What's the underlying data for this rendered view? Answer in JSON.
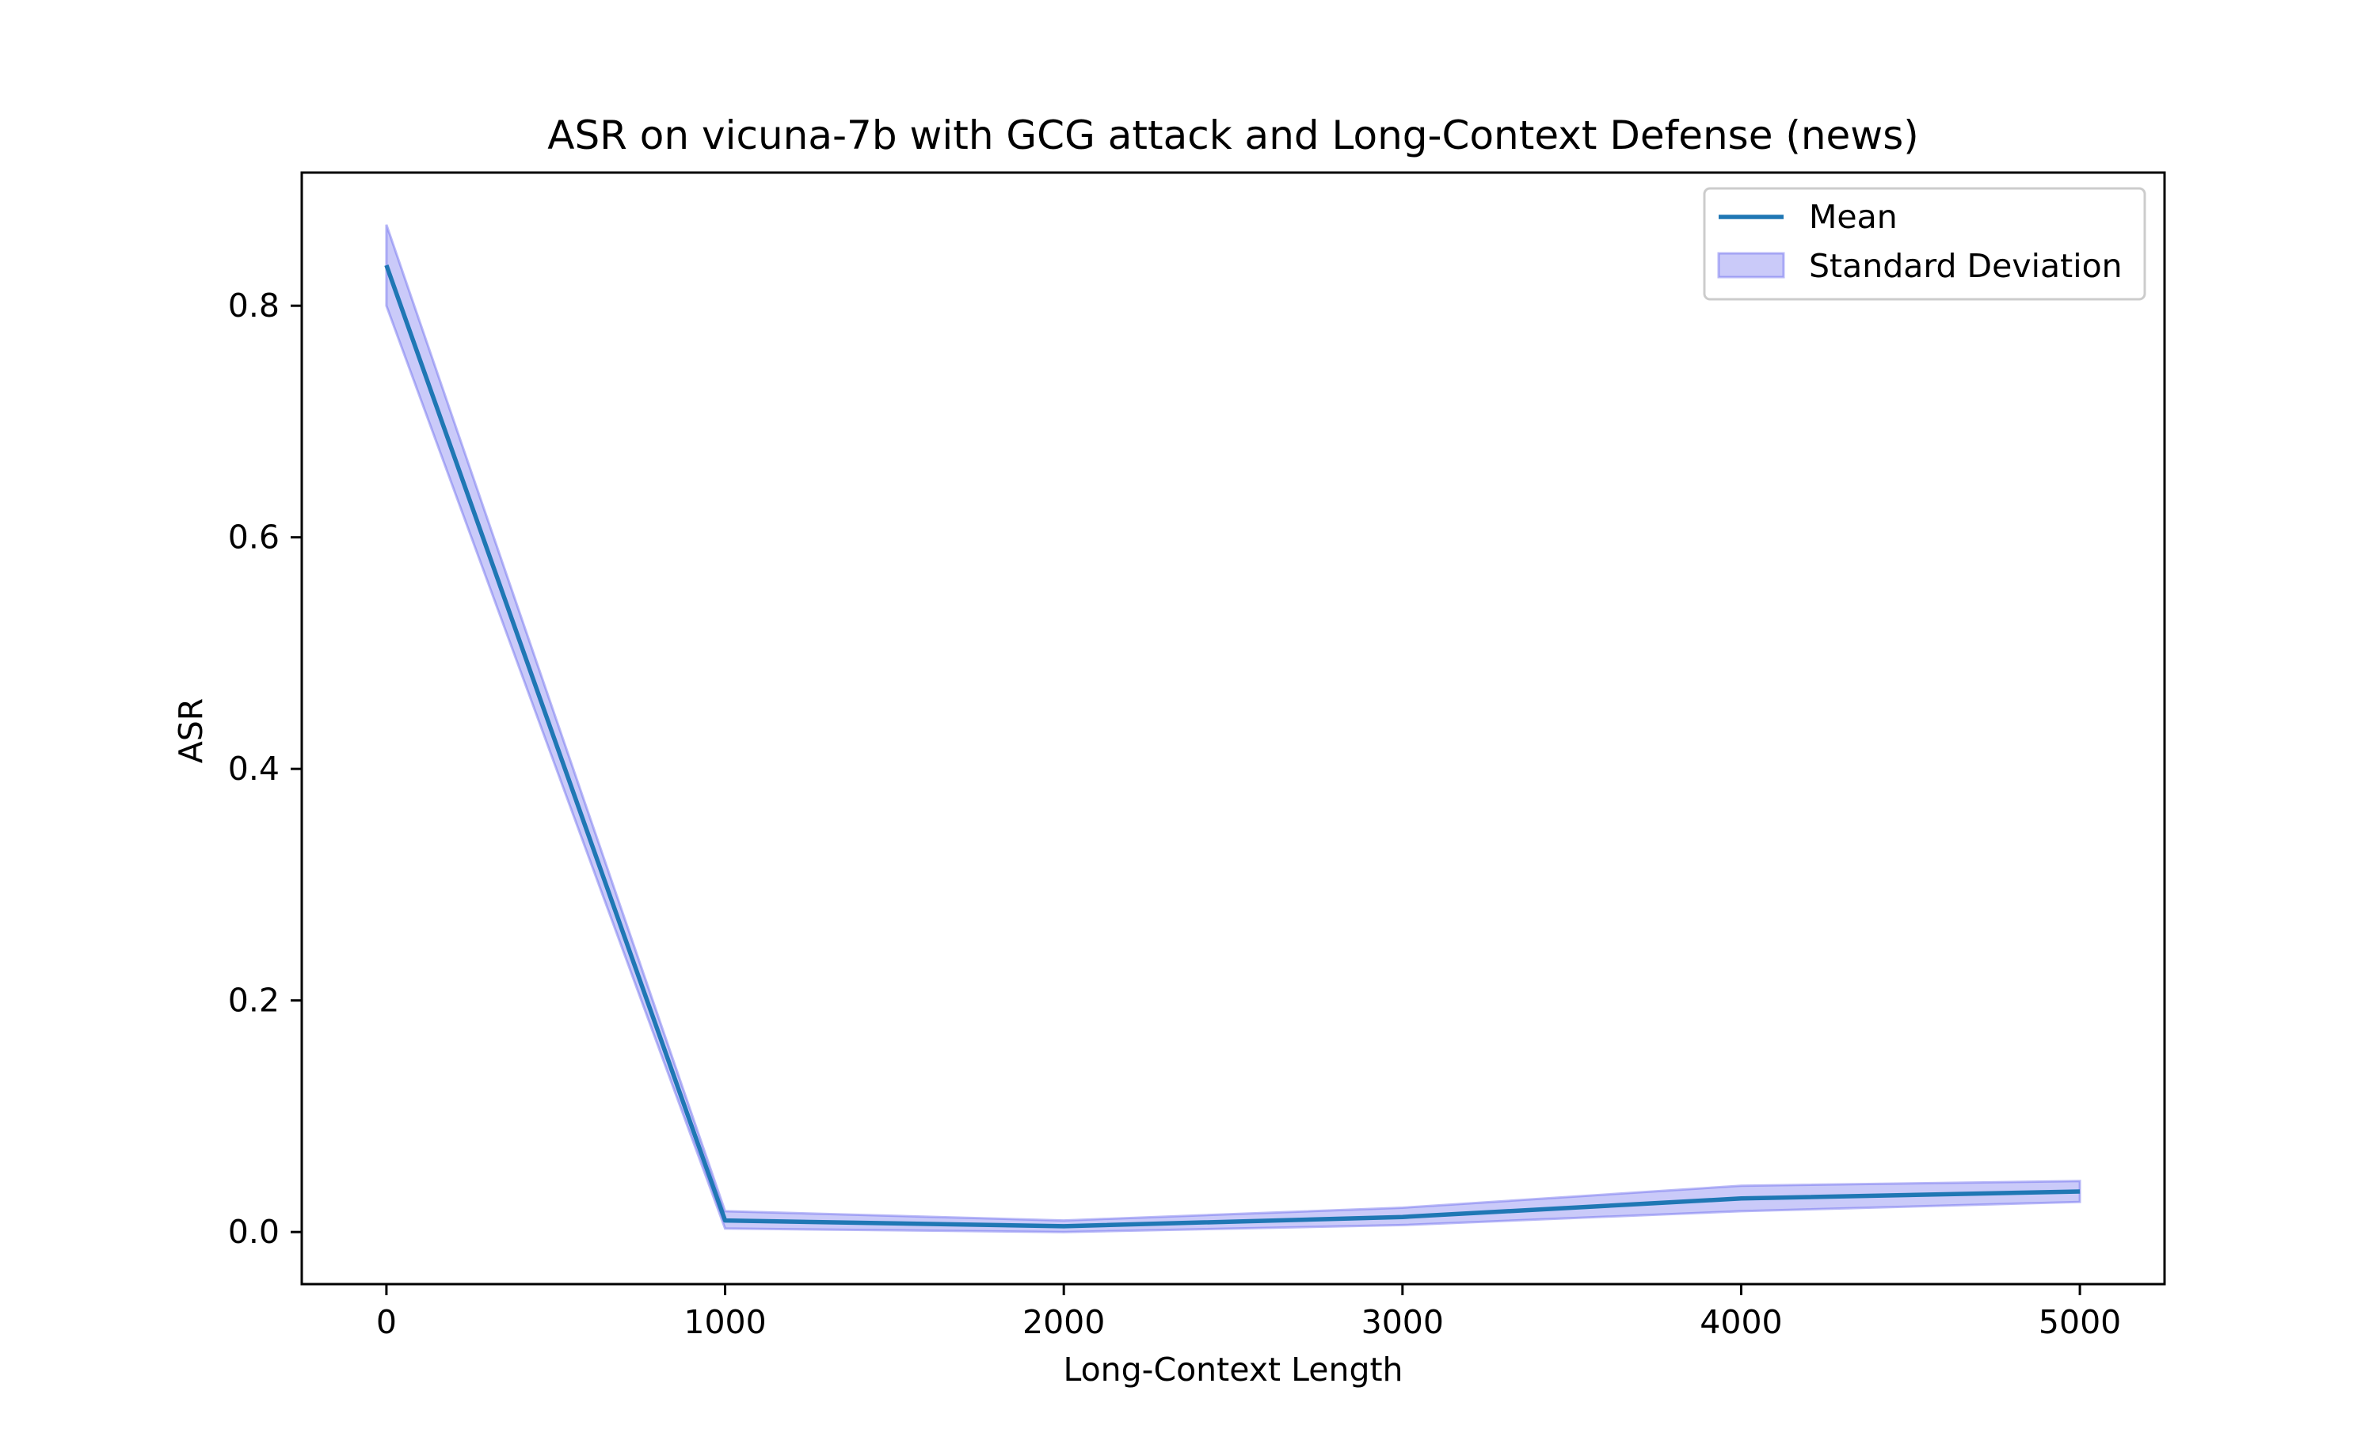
{
  "chart_data": {
    "type": "line",
    "title": "ASR on vicuna-7b with GCG attack and Long-Context Defense (news)",
    "xlabel": "Long-Context Length",
    "ylabel": "ASR",
    "x": [
      0,
      1000,
      2000,
      3000,
      4000,
      5000
    ],
    "x_ticks": [
      "0",
      "1000",
      "2000",
      "3000",
      "4000",
      "5000"
    ],
    "y_ticks": [
      "0.0",
      "0.2",
      "0.4",
      "0.6",
      "0.8"
    ],
    "xlim": [
      -250,
      5250
    ],
    "ylim": [
      -0.045,
      0.915
    ],
    "series": [
      {
        "name": "Mean",
        "values": [
          0.835,
          0.01,
          0.005,
          0.013,
          0.029,
          0.035
        ],
        "color": "#1f77b4"
      }
    ],
    "bands": [
      {
        "name": "Standard Deviation",
        "lower": [
          0.8,
          0.003,
          0.0,
          0.006,
          0.018,
          0.026
        ],
        "upper": [
          0.87,
          0.018,
          0.01,
          0.021,
          0.04,
          0.044
        ],
        "fill_color": "#6666ee",
        "fill_opacity": 0.35
      }
    ],
    "legend": {
      "position": "top-right",
      "entries": [
        "Mean",
        "Standard Deviation"
      ]
    },
    "grid": false
  }
}
